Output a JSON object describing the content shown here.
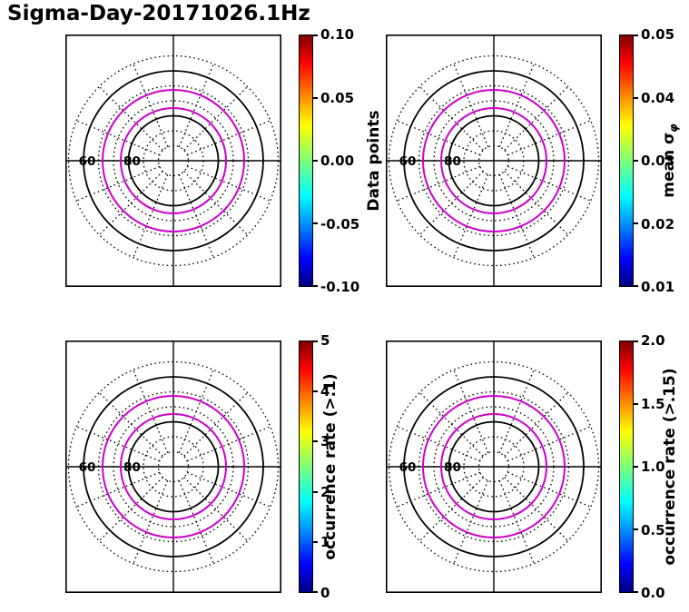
{
  "title": "Sigma-Day-20171026.1Hz",
  "chart_data": {
    "type": "polar",
    "layout": "2x2-polar-grids-with-colorbars",
    "title": "Sigma-Day-20171026.1Hz",
    "colormap": "jet",
    "panels": [
      {
        "position": "top-left",
        "colorbar_label": "Data points",
        "colorbar_ticks": [
          "0.10",
          "0.05",
          "0.00",
          "-0.05",
          "-0.10"
        ],
        "colorbar_range": [
          -0.1,
          0.1
        ]
      },
      {
        "position": "top-right",
        "colorbar_label": "mean σφ",
        "label_main": "mean σ",
        "label_sub": "φ",
        "colorbar_ticks": [
          "0.05",
          "0.04",
          "0.03",
          "0.02",
          "0.01"
        ],
        "colorbar_range": [
          0.01,
          0.05
        ]
      },
      {
        "position": "bottom-left",
        "colorbar_label": "occurrence rate (>.1)",
        "colorbar_ticks": [
          "5",
          "4",
          "3",
          "2",
          "1",
          "0"
        ],
        "colorbar_range": [
          0,
          5
        ]
      },
      {
        "position": "bottom-right",
        "colorbar_label": "occurrence rate (>.15)",
        "colorbar_ticks": [
          "2.0",
          "1.5",
          "1.0",
          "0.5",
          "0.0"
        ],
        "colorbar_range": [
          0.0,
          2.0
        ]
      }
    ],
    "polar_grid": {
      "radial_tick_labels": [
        {
          "text": "60",
          "radius": 99
        },
        {
          "text": "80",
          "radius": 49.5
        }
      ],
      "dotted_ring_radii": [
        16.5,
        33,
        66,
        82.5,
        115.5
      ],
      "solid_ring_radii": [
        49.5,
        99
      ],
      "overlay_ring_radii": [
        58,
        78
      ],
      "overlay_ring_color": "#cc00cc",
      "spoke_step_deg": 22.5
    }
  }
}
